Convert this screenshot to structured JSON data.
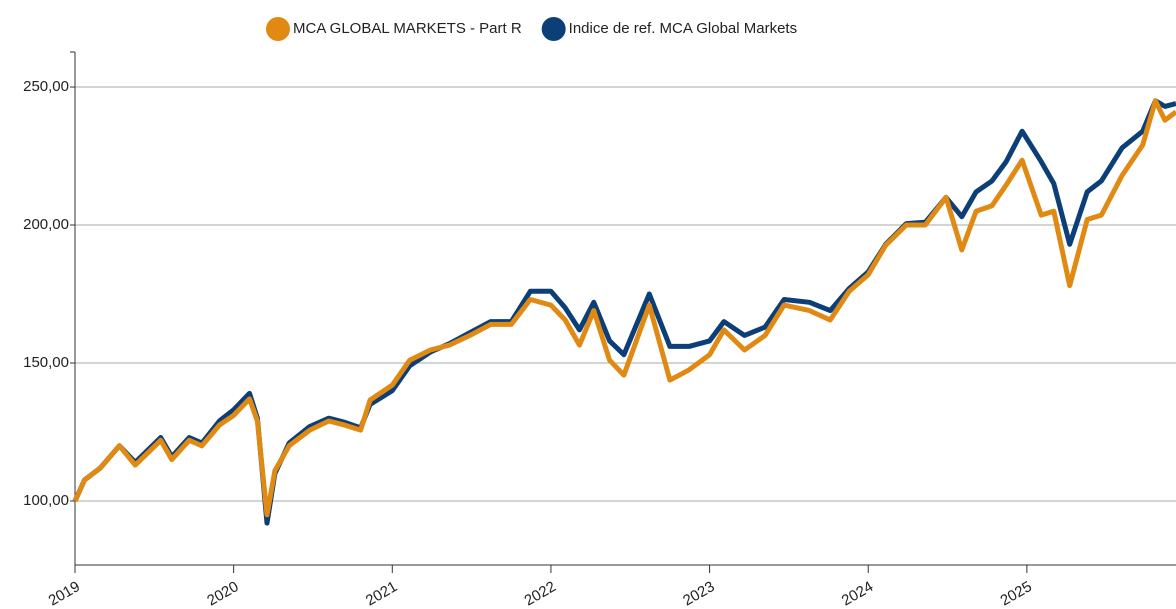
{
  "chart_data": {
    "type": "line",
    "x": [
      2019.0,
      2019.06,
      2019.16,
      2019.28,
      2019.38,
      2019.54,
      2019.61,
      2019.72,
      2019.8,
      2019.91,
      2020.0,
      2020.1,
      2020.15,
      2020.21,
      2020.26,
      2020.35,
      2020.48,
      2020.6,
      2020.7,
      2020.8,
      2020.86,
      2021.0,
      2021.11,
      2021.24,
      2021.36,
      2021.49,
      2021.62,
      2021.75,
      2021.87,
      2022.0,
      2022.09,
      2022.18,
      2022.27,
      2022.37,
      2022.46,
      2022.62,
      2022.75,
      2022.87,
      2023.0,
      2023.09,
      2023.22,
      2023.35,
      2023.47,
      2023.63,
      2023.76,
      2023.88,
      2024.0,
      2024.11,
      2024.24,
      2024.36,
      2024.49,
      2024.59,
      2024.68,
      2024.78,
      2024.87,
      2024.97,
      2025.09,
      2025.17,
      2025.27,
      2025.38,
      2025.47,
      2025.6,
      2025.73,
      2025.81,
      2025.87,
      2025.94
    ],
    "series": [
      {
        "name": "MCA GLOBAL MARKETS - Part R",
        "color": "#e08a14",
        "values": [
          100,
          107.6,
          112,
          120,
          113,
          122,
          115,
          122,
          120,
          127.5,
          131,
          137,
          129,
          95,
          111,
          120,
          125.7,
          129,
          127.5,
          125.7,
          136.6,
          142,
          151,
          154.7,
          156.5,
          160,
          164,
          164,
          173,
          171,
          165.6,
          156.5,
          169,
          151,
          145.6,
          171,
          143.8,
          147.5,
          153,
          162,
          154.7,
          160,
          171,
          169,
          165.6,
          176,
          182,
          192.7,
          200,
          200,
          210,
          191,
          205,
          207,
          214.5,
          223.5,
          203.6,
          205,
          178,
          202,
          203.6,
          218,
          229,
          245,
          238,
          241
        ]
      },
      {
        "name": "Indice de ref. MCA Global Markets",
        "color": "#0c3f78",
        "values": [
          100,
          107.6,
          112,
          120,
          114,
          123,
          116,
          123,
          121,
          129,
          133,
          139,
          130,
          92,
          110,
          121,
          127,
          130,
          128.5,
          126.5,
          135,
          140,
          149,
          154,
          157,
          161,
          165,
          165,
          176,
          176,
          170,
          162,
          172,
          158,
          153,
          175,
          156,
          156,
          158,
          165,
          160,
          163,
          173,
          172,
          169,
          177,
          183,
          193,
          200.5,
          201,
          210,
          203,
          212,
          216,
          223,
          234,
          223,
          215,
          193,
          212,
          216,
          228,
          234,
          245,
          243,
          244
        ]
      }
    ],
    "xlim": [
      2019.0,
      2025.94
    ],
    "xticks": [
      2019,
      2020,
      2021,
      2022,
      2023,
      2024,
      2025
    ],
    "ylim": [
      76.8,
      262.7
    ],
    "yticks": [
      {
        "value": 100,
        "label": "100,00"
      },
      {
        "value": 150,
        "label": "150,00"
      },
      {
        "value": 200,
        "label": "200,00"
      },
      {
        "value": 250,
        "label": "250,00"
      }
    ],
    "grid": true,
    "legend": "top"
  }
}
